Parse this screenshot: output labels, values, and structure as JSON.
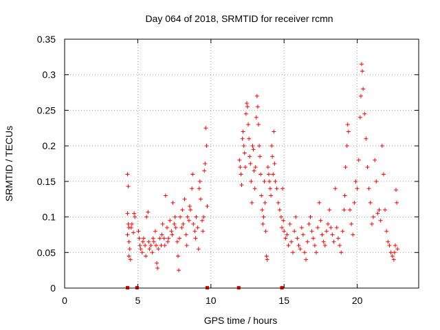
{
  "chart_data": {
    "type": "scatter",
    "title": "Day 064 of 2018, SRMTID for receiver rcmn",
    "xlabel": "GPS time / hours",
    "ylabel": "SRMTID / TECUs",
    "xlim": [
      0,
      24.2
    ],
    "ylim": [
      0,
      0.35
    ],
    "xticks": [
      0,
      5,
      10,
      15,
      20
    ],
    "xtick_labels": [
      "0",
      "5",
      "10",
      "15",
      "20"
    ],
    "yticks": [
      0,
      0.05,
      0.1,
      0.15,
      0.2,
      0.25,
      0.3,
      0.35
    ],
    "ytick_labels": [
      "0",
      "0.05",
      "0.1",
      "0.15",
      "0.2",
      "0.25",
      "0.3",
      "0.35"
    ],
    "grid": true,
    "marker": "+",
    "color": "#ff0000",
    "series": [
      {
        "name": "SRMTID",
        "points": [
          [
            4.3,
            0.16
          ],
          [
            4.35,
            0.143
          ],
          [
            4.3,
            0.105
          ],
          [
            4.35,
            0.09
          ],
          [
            4.4,
            0.085
          ],
          [
            4.3,
            0.075
          ],
          [
            4.4,
            0.065
          ],
          [
            4.45,
            0.055
          ],
          [
            4.4,
            0.045
          ],
          [
            4.5,
            0.04
          ],
          [
            4.55,
            0.085
          ],
          [
            4.6,
            0.09
          ],
          [
            4.7,
            0.078
          ],
          [
            4.75,
            0.105
          ],
          [
            4.8,
            0.1
          ],
          [
            5.05,
            0.08
          ],
          [
            5.1,
            0.07
          ],
          [
            5.15,
            0.06
          ],
          [
            5.2,
            0.055
          ],
          [
            5.3,
            0.05
          ],
          [
            5.35,
            0.065
          ],
          [
            5.4,
            0.07
          ],
          [
            5.5,
            0.06
          ],
          [
            5.55,
            0.045
          ],
          [
            5.6,
            0.1
          ],
          [
            5.7,
            0.107
          ],
          [
            5.75,
            0.065
          ],
          [
            5.8,
            0.055
          ],
          [
            5.9,
            0.06
          ],
          [
            6.0,
            0.05
          ],
          [
            6.05,
            0.07
          ],
          [
            6.1,
            0.065
          ],
          [
            6.2,
            0.08
          ],
          [
            6.25,
            0.06
          ],
          [
            6.3,
            0.035
          ],
          [
            6.35,
            0.028
          ],
          [
            6.4,
            0.055
          ],
          [
            6.5,
            0.07
          ],
          [
            6.6,
            0.06
          ],
          [
            6.65,
            0.075
          ],
          [
            6.7,
            0.09
          ],
          [
            6.8,
            0.07
          ],
          [
            6.85,
            0.06
          ],
          [
            6.9,
            0.13
          ],
          [
            7.0,
            0.085
          ],
          [
            7.05,
            0.065
          ],
          [
            7.1,
            0.07
          ],
          [
            7.2,
            0.095
          ],
          [
            7.3,
            0.08
          ],
          [
            7.35,
            0.075
          ],
          [
            7.4,
            0.12
          ],
          [
            7.5,
            0.09
          ],
          [
            7.55,
            0.1
          ],
          [
            7.6,
            0.085
          ],
          [
            7.7,
            0.065
          ],
          [
            7.75,
            0.045
          ],
          [
            7.8,
            0.025
          ],
          [
            7.85,
            0.07
          ],
          [
            7.9,
            0.1
          ],
          [
            8.0,
            0.085
          ],
          [
            8.05,
            0.11
          ],
          [
            8.1,
            0.09
          ],
          [
            8.2,
            0.125
          ],
          [
            8.3,
            0.075
          ],
          [
            8.35,
            0.06
          ],
          [
            8.4,
            0.1
          ],
          [
            8.5,
            0.095
          ],
          [
            8.55,
            0.115
          ],
          [
            8.6,
            0.11
          ],
          [
            8.7,
            0.14
          ],
          [
            8.75,
            0.16
          ],
          [
            8.8,
            0.09
          ],
          [
            8.9,
            0.08
          ],
          [
            8.95,
            0.07
          ],
          [
            9.0,
            0.1
          ],
          [
            9.1,
            0.085
          ],
          [
            9.15,
            0.055
          ],
          [
            9.2,
            0.14
          ],
          [
            9.25,
            0.15
          ],
          [
            9.3,
            0.125
          ],
          [
            9.4,
            0.095
          ],
          [
            9.45,
            0.08
          ],
          [
            9.5,
            0.1
          ],
          [
            9.55,
            0.165
          ],
          [
            9.6,
            0.175
          ],
          [
            9.65,
            0.225
          ],
          [
            9.7,
            0.2
          ],
          [
            9.75,
            0.115
          ],
          [
            11.95,
            0.18
          ],
          [
            12.0,
            0.17
          ],
          [
            12.05,
            0.16
          ],
          [
            12.1,
            0.145
          ],
          [
            12.15,
            0.21
          ],
          [
            12.2,
            0.22
          ],
          [
            12.25,
            0.2
          ],
          [
            12.3,
            0.19
          ],
          [
            12.35,
            0.17
          ],
          [
            12.4,
            0.245
          ],
          [
            12.45,
            0.26
          ],
          [
            12.5,
            0.255
          ],
          [
            12.55,
            0.23
          ],
          [
            12.6,
            0.21
          ],
          [
            12.65,
            0.185
          ],
          [
            12.7,
            0.175
          ],
          [
            12.75,
            0.15
          ],
          [
            12.8,
            0.12
          ],
          [
            12.85,
            0.2
          ],
          [
            12.9,
            0.195
          ],
          [
            12.95,
            0.165
          ],
          [
            13.0,
            0.14
          ],
          [
            13.05,
            0.17
          ],
          [
            13.1,
            0.24
          ],
          [
            13.15,
            0.27
          ],
          [
            13.2,
            0.255
          ],
          [
            13.25,
            0.23
          ],
          [
            13.3,
            0.2
          ],
          [
            13.35,
            0.185
          ],
          [
            13.4,
            0.16
          ],
          [
            13.45,
            0.13
          ],
          [
            13.5,
            0.11
          ],
          [
            13.55,
            0.09
          ],
          [
            13.6,
            0.1
          ],
          [
            13.65,
            0.15
          ],
          [
            13.7,
            0.12
          ],
          [
            13.75,
            0.08
          ],
          [
            13.8,
            0.045
          ],
          [
            13.85,
            0.04
          ],
          [
            13.9,
            0.17
          ],
          [
            13.95,
            0.16
          ],
          [
            14.0,
            0.15
          ],
          [
            14.05,
            0.14
          ],
          [
            14.1,
            0.13
          ],
          [
            14.15,
            0.2
          ],
          [
            14.2,
            0.185
          ],
          [
            14.25,
            0.16
          ],
          [
            14.3,
            0.22
          ],
          [
            14.35,
            0.175
          ],
          [
            14.4,
            0.15
          ],
          [
            14.5,
            0.14
          ],
          [
            14.6,
            0.12
          ],
          [
            14.7,
            0.11
          ],
          [
            14.8,
            0.1
          ],
          [
            14.85,
            0.085
          ],
          [
            14.9,
            0.14
          ],
          [
            14.95,
            0.095
          ],
          [
            15.0,
            0.08
          ],
          [
            15.1,
            0.07
          ],
          [
            15.2,
            0.075
          ],
          [
            15.3,
            0.06
          ],
          [
            15.4,
            0.09
          ],
          [
            15.5,
            0.065
          ],
          [
            15.6,
            0.05
          ],
          [
            15.7,
            0.08
          ],
          [
            15.8,
            0.1
          ],
          [
            15.9,
            0.07
          ],
          [
            16.0,
            0.06
          ],
          [
            16.1,
            0.055
          ],
          [
            16.2,
            0.085
          ],
          [
            16.3,
            0.075
          ],
          [
            16.4,
            0.05
          ],
          [
            16.5,
            0.04
          ],
          [
            16.6,
            0.065
          ],
          [
            16.7,
            0.09
          ],
          [
            16.8,
            0.1
          ],
          [
            16.9,
            0.08
          ],
          [
            17.0,
            0.07
          ],
          [
            17.1,
            0.06
          ],
          [
            17.2,
            0.05
          ],
          [
            17.3,
            0.085
          ],
          [
            17.4,
            0.12
          ],
          [
            17.5,
            0.095
          ],
          [
            17.6,
            0.075
          ],
          [
            17.7,
            0.065
          ],
          [
            17.8,
            0.06
          ],
          [
            17.9,
            0.08
          ],
          [
            18.0,
            0.09
          ],
          [
            18.1,
            0.11
          ],
          [
            18.2,
            0.085
          ],
          [
            18.3,
            0.075
          ],
          [
            18.4,
            0.065
          ],
          [
            18.5,
            0.14
          ],
          [
            18.6,
            0.085
          ],
          [
            18.7,
            0.07
          ],
          [
            18.8,
            0.06
          ],
          [
            18.9,
            0.05
          ],
          [
            19.0,
            0.08
          ],
          [
            19.1,
            0.11
          ],
          [
            19.15,
            0.13
          ],
          [
            19.2,
            0.17
          ],
          [
            19.3,
            0.2
          ],
          [
            19.35,
            0.23
          ],
          [
            19.4,
            0.22
          ],
          [
            19.5,
            0.11
          ],
          [
            19.6,
            0.09
          ],
          [
            19.7,
            0.075
          ],
          [
            19.8,
            0.12
          ],
          [
            19.9,
            0.15
          ],
          [
            20.0,
            0.14
          ],
          [
            20.1,
            0.18
          ],
          [
            20.2,
            0.24
          ],
          [
            20.25,
            0.27
          ],
          [
            20.3,
            0.315
          ],
          [
            20.35,
            0.305
          ],
          [
            20.4,
            0.28
          ],
          [
            20.5,
            0.245
          ],
          [
            20.6,
            0.21
          ],
          [
            20.7,
            0.17
          ],
          [
            20.8,
            0.14
          ],
          [
            20.9,
            0.12
          ],
          [
            21.0,
            0.09
          ],
          [
            21.1,
            0.1
          ],
          [
            21.2,
            0.18
          ],
          [
            21.3,
            0.15
          ],
          [
            21.4,
            0.105
          ],
          [
            21.5,
            0.11
          ],
          [
            21.6,
            0.095
          ],
          [
            21.7,
            0.2
          ],
          [
            21.8,
            0.16
          ],
          [
            21.9,
            0.11
          ],
          [
            22.0,
            0.08
          ],
          [
            22.1,
            0.065
          ],
          [
            22.2,
            0.06
          ],
          [
            22.3,
            0.05
          ],
          [
            22.4,
            0.045
          ],
          [
            22.5,
            0.04
          ],
          [
            22.55,
            0.05
          ],
          [
            22.6,
            0.06
          ],
          [
            22.65,
            0.138
          ],
          [
            22.7,
            0.12
          ],
          [
            22.75,
            0.055
          ]
        ]
      }
    ],
    "zero_markers_x": [
      4.3,
      4.95,
      9.75,
      11.9,
      14.85
    ]
  }
}
